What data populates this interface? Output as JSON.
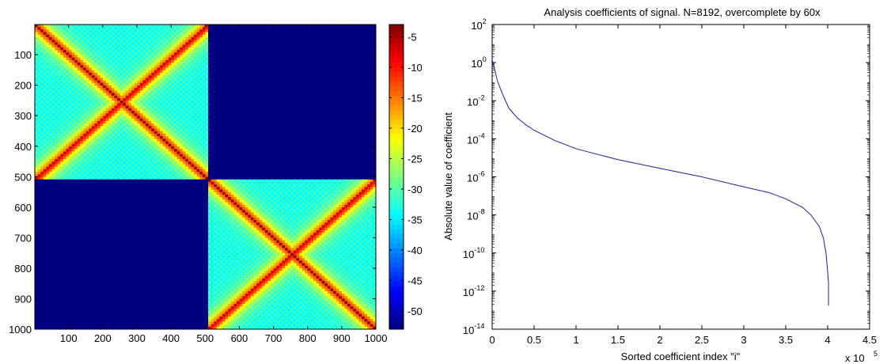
{
  "chart_data": [
    {
      "type": "heatmap",
      "title": "",
      "xlabel": "",
      "ylabel": "",
      "matrix_size": 1000,
      "block_boundary": 512,
      "xlim": [
        1,
        1000
      ],
      "ylim": [
        1,
        1000
      ],
      "y_axis_direction": "top-to-bottom",
      "x_ticks": [
        "100",
        "200",
        "300",
        "400",
        "500",
        "600",
        "700",
        "800",
        "900",
        "1000"
      ],
      "y_ticks": [
        "100",
        "200",
        "300",
        "400",
        "500",
        "600",
        "700",
        "800",
        "900",
        "1000"
      ],
      "colorbar": {
        "colormap": "jet",
        "clim": [
          -53,
          -3
        ],
        "ticks": [
          "-5",
          "-10",
          "-15",
          "-20",
          "-25",
          "-30",
          "-35",
          "-40",
          "-45",
          "-50"
        ],
        "tick_values": [
          -5,
          -10,
          -15,
          -20,
          -25,
          -30,
          -35,
          -40,
          -45,
          -50
        ]
      },
      "off_diagonal_block_value": -53
    },
    {
      "type": "line",
      "title": "Analysis coefficients of signal.  N=8192, overcomplete by 60x",
      "xlabel": "Sorted coefficient index \"i\"",
      "ylabel": "Absolute value of coefficient",
      "x_multiplier_label": "x 10",
      "x_multiplier_exponent": "5",
      "xlim": [
        0,
        450000
      ],
      "yscale": "log",
      "ylim": [
        1e-14,
        100
      ],
      "x_ticks": [
        "0",
        "0.5",
        "1",
        "1.5",
        "2",
        "2.5",
        "3",
        "3.5",
        "4",
        "4.5"
      ],
      "x_tick_values": [
        0,
        0.5,
        1,
        1.5,
        2,
        2.5,
        3,
        3.5,
        4,
        4.5
      ],
      "y_ticks": [
        {
          "base": "10",
          "exp": "2",
          "value": 2
        },
        {
          "base": "10",
          "exp": "0",
          "value": 0
        },
        {
          "base": "10",
          "exp": "-2",
          "value": -2
        },
        {
          "base": "10",
          "exp": "-4",
          "value": -4
        },
        {
          "base": "10",
          "exp": "-6",
          "value": -6
        },
        {
          "base": "10",
          "exp": "-8",
          "value": -8
        },
        {
          "base": "10",
          "exp": "-10",
          "value": -10
        },
        {
          "base": "10",
          "exp": "-12",
          "value": -12
        },
        {
          "base": "10",
          "exp": "-14",
          "value": -14
        }
      ],
      "series": [
        {
          "color": "#1f1f9e",
          "x": [
            0,
            1000,
            3000,
            6000,
            10000,
            15000,
            20000,
            30000,
            40000,
            50000,
            75000,
            100000,
            150000,
            200000,
            250000,
            300000,
            330000,
            350000,
            370000,
            380000,
            390000,
            395000,
            398000,
            400000,
            401000,
            401000
          ],
          "y": [
            1.4,
            1.0,
            0.45,
            0.12,
            0.04,
            0.012,
            0.004,
            0.00125,
            0.00055,
            0.00028,
            8e-05,
            3e-05,
            8e-06,
            2.8e-06,
            1e-06,
            3e-07,
            1.5e-07,
            7e-08,
            2.5e-08,
            1e-08,
            2.5e-09,
            6e-10,
            1e-10,
            1e-11,
            3e-12,
            1.7e-13
          ]
        }
      ]
    }
  ]
}
